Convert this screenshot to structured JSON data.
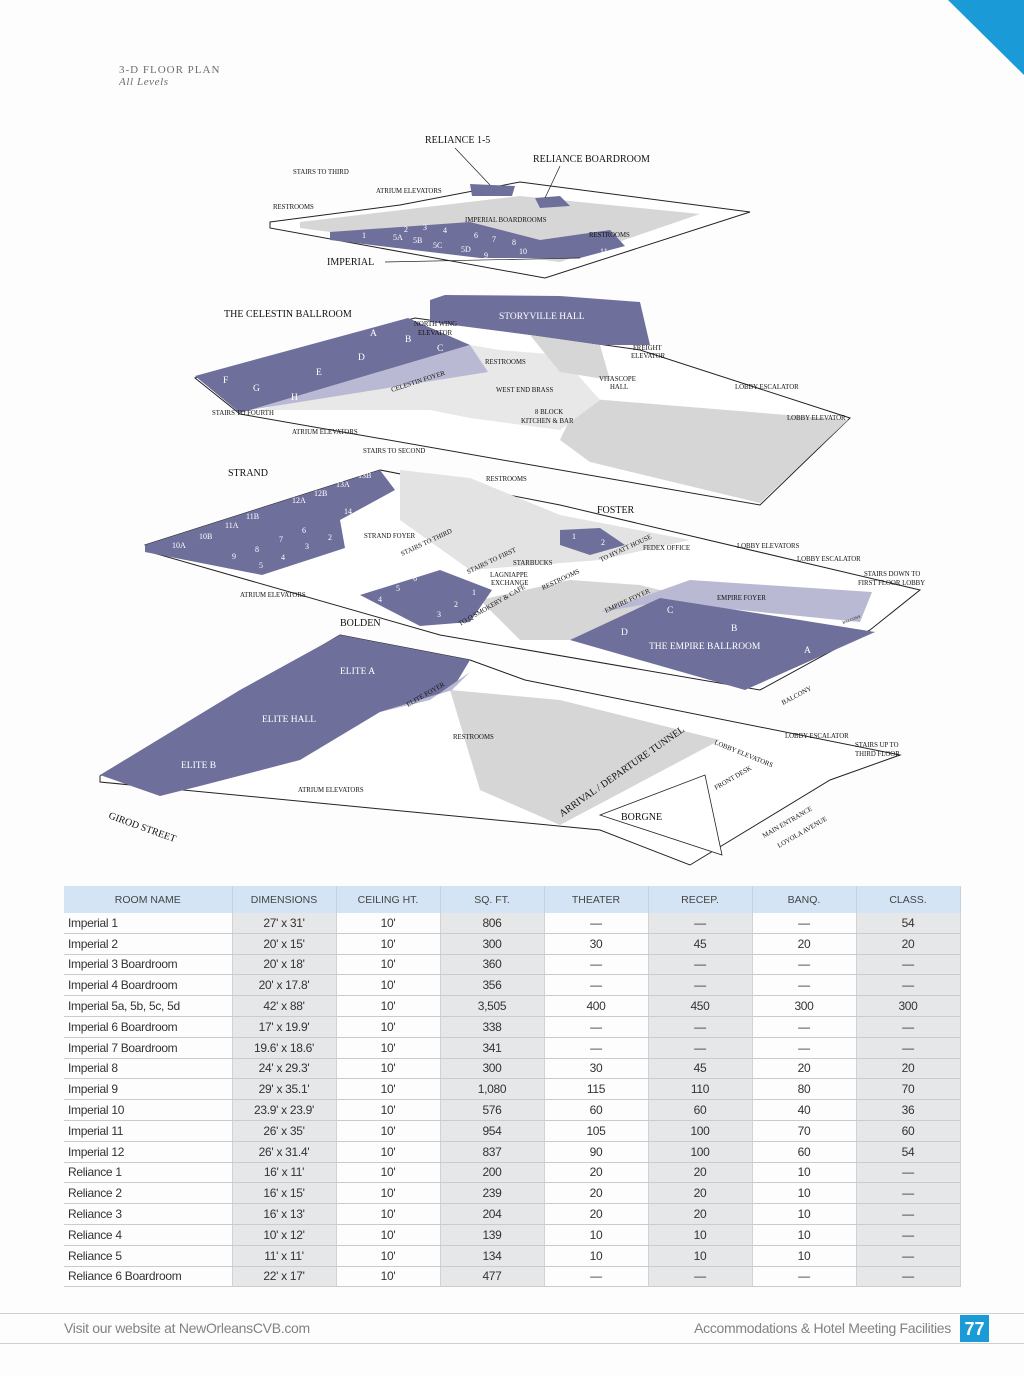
{
  "header": {
    "title": "3-D FLOOR PLAN",
    "subtitle": "All Levels"
  },
  "colors": {
    "accent": "#1a9ad6",
    "room": "#6f6f9c",
    "foyer": "#b9b9d3",
    "floor": "#d6d6d6"
  },
  "plan": {
    "level1": {
      "reliance": "RELIANCE 1-5",
      "reliance_boardroom": "RELIANCE BOARDROOM",
      "stairs_third": "STAIRS TO THIRD",
      "atrium_elevators": "ATRIUM ELEVATORS",
      "restrooms_left": "RESTROOMS",
      "imperial_boardrooms": "IMPERIAL BOARDROOMS",
      "restrooms_right": "RESTROOMS",
      "imperial": "IMPERIAL",
      "rooms": [
        "1",
        "2",
        "3",
        "4",
        "5A",
        "5B",
        "5C",
        "5D",
        "6",
        "7",
        "8",
        "9",
        "10",
        "11",
        "12"
      ]
    },
    "level2": {
      "celestin": "THE CELESTIN BALLROOM",
      "storyville": "STORYVILLE HALL",
      "north_wing_1": "NORTH WING",
      "north_wing_2": "ELEVATOR",
      "freight_1": "FREIGHT",
      "freight_2": "ELEVATOR",
      "restrooms": "RESTROOMS",
      "celestin_foyer": "CELESTIN FOYER",
      "west_end_brass": "WEST END BRASS",
      "vitascope_1": "VITASCOPE",
      "vitascope_2": "HALL",
      "lobby_escalator": "LOBBY ESCALATOR",
      "lobby_elevator": "LOBBY ELEVATOR",
      "stairs_fourth": "STAIRS TO FOURTH",
      "block8_1": "8 BLOCK",
      "block8_2": "KITCHEN & BAR",
      "atrium_elevators": "ATRIUM ELEVATORS",
      "stairs_second": "STAIRS TO SECOND",
      "sections": [
        "A",
        "B",
        "C",
        "D",
        "E",
        "F",
        "G",
        "H"
      ]
    },
    "level3": {
      "strand": "STRAND",
      "restrooms": "RESTROOMS",
      "foster": "FOSTER",
      "strand_foyer": "STRAND FOYER",
      "stairs_third": "STAIRS TO THIRD",
      "stairs_first": "STAIRS TO FIRST",
      "starbucks": "STARBUCKS",
      "lagniappe_1": "LAGNIAPPE",
      "lagniappe_2": "EXCHANGE",
      "restrooms_2": "RESTROOMS",
      "to_hyatt": "TO HYATT HOUSE",
      "fedex": "FEDEX OFFICE",
      "lobby_elevators": "LOBBY ELEVATORS",
      "lobby_escalator": "LOBBY ESCALATOR",
      "stairs_down_1": "STAIRS DOWN TO",
      "stairs_down_2": "FIRST FLOOR LOBBY",
      "empire_foyer": "EMPIRE FOYER",
      "empire_foyer_2": "EMPIRE FOYER",
      "atrium_elevators": "ATRIUM ELEVATORS",
      "bolden": "BOLDEN",
      "to_q": "TO Q SMOKERY & CAFE",
      "empire": "THE EMPIRE BALLROOM",
      "balcony": "BALCONY",
      "balcony_small": "BALCONY",
      "strand_rooms": [
        "13B",
        "13A",
        "12B",
        "12A",
        "14",
        "11B",
        "11A",
        "10B",
        "10A",
        "6",
        "7",
        "2",
        "3",
        "8",
        "9",
        "4",
        "5",
        "1"
      ],
      "bolden_rooms": [
        "6",
        "5",
        "4",
        "1",
        "2",
        "3"
      ],
      "foster_rooms": [
        "1",
        "2"
      ],
      "empire_sections": [
        "C",
        "D",
        "B",
        "A"
      ]
    },
    "level4": {
      "elite_a": "ELITE A",
      "elite_foyer": "ELITE FOYER",
      "elite_hall": "ELITE HALL",
      "elite_b": "ELITE B",
      "restrooms": "RESTROOMS",
      "atrium_elevators": "ATRIUM ELEVATORS",
      "girod": "GIROD STREET",
      "tunnel": "ARRIVAL / DEPARTURE TUNNEL",
      "borgne": "BORGNE",
      "lobby_elevators": "LOBBY ELEVATORS",
      "front_desk": "FRONT DESK",
      "lobby_escalator": "LOBBY ESCALATOR",
      "stairs_up_1": "STAIRS UP TO",
      "stairs_up_2": "THIRD FLOOR",
      "main_entrance": "MAIN ENTRANCE",
      "loyola": "LOYOLA AVENUE"
    }
  },
  "table": {
    "headers": [
      "ROOM NAME",
      "DIMENSIONS",
      "CEILING HT.",
      "SQ. FT.",
      "THEATER",
      "RECEP.",
      "BANQ.",
      "CLASS."
    ],
    "rows": [
      [
        "Imperial 1",
        "27' x 31'",
        "10'",
        "806",
        "—",
        "—",
        "—",
        "54"
      ],
      [
        "Imperial 2",
        "20' x 15'",
        "10'",
        "300",
        "30",
        "45",
        "20",
        "20"
      ],
      [
        "Imperial 3 Boardroom",
        "20' x 18'",
        "10'",
        "360",
        "—",
        "—",
        "—",
        "—"
      ],
      [
        "Imperial 4 Boardroom",
        "20' x 17.8'",
        "10'",
        "356",
        "—",
        "—",
        "—",
        "—"
      ],
      [
        "Imperial 5a, 5b, 5c, 5d",
        "42' x 88'",
        "10'",
        "3,505",
        "400",
        "450",
        "300",
        "300"
      ],
      [
        "Imperial 6 Boardroom",
        "17' x 19.9'",
        "10'",
        "338",
        "—",
        "—",
        "—",
        "—"
      ],
      [
        "Imperial 7 Boardroom",
        "19.6' x 18.6'",
        "10'",
        "341",
        "—",
        "—",
        "—",
        "—"
      ],
      [
        "Imperial 8",
        "24' x 29.3'",
        "10'",
        "300",
        "30",
        "45",
        "20",
        "20"
      ],
      [
        "Imperial 9",
        "29' x 35.1'",
        "10'",
        "1,080",
        "115",
        "110",
        "80",
        "70"
      ],
      [
        "Imperial 10",
        "23.9' x 23.9'",
        "10'",
        "576",
        "60",
        "60",
        "40",
        "36"
      ],
      [
        "Imperial 11",
        "26' x 35'",
        "10'",
        "954",
        "105",
        "100",
        "70",
        "60"
      ],
      [
        "Imperial 12",
        "26' x 31.4'",
        "10'",
        "837",
        "90",
        "100",
        "60",
        "54"
      ],
      [
        "Reliance 1",
        "16' x 11'",
        "10'",
        "200",
        "20",
        "20",
        "10",
        "—"
      ],
      [
        "Reliance 2",
        "16' x 15'",
        "10'",
        "239",
        "20",
        "20",
        "10",
        "—"
      ],
      [
        "Reliance 3",
        "16' x 13'",
        "10'",
        "204",
        "20",
        "20",
        "10",
        "—"
      ],
      [
        "Reliance 4",
        "10' x 12'",
        "10'",
        "139",
        "10",
        "10",
        "10",
        "—"
      ],
      [
        "Reliance 5",
        "11' x 11'",
        "10'",
        "134",
        "10",
        "10",
        "10",
        "—"
      ],
      [
        "Reliance 6 Boardroom",
        "22' x 17'",
        "10'",
        "477",
        "—",
        "—",
        "—",
        "—"
      ]
    ]
  },
  "footer": {
    "website": "Visit our website at NewOrleansCVB.com",
    "section": "Accommodations & Hotel Meeting Facilities",
    "page": "77"
  }
}
